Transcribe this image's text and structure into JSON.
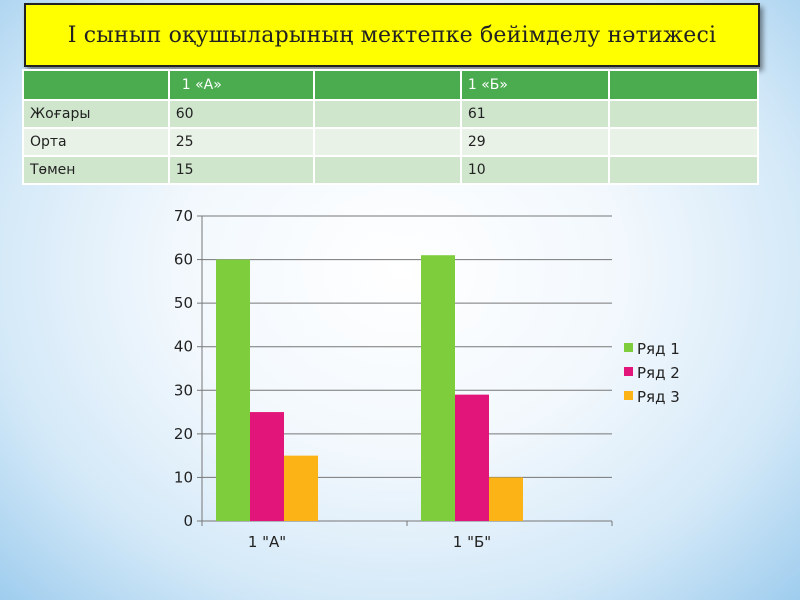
{
  "title": "I  сынып оқушыларының мектепке бейімделу нәтижесі",
  "table": {
    "header": [
      "",
      "1 «А»",
      "",
      "1 «Б»",
      ""
    ],
    "rows": [
      [
        "Жоғары",
        "60",
        "",
        "61",
        ""
      ],
      [
        "Орта",
        "25",
        "",
        "29",
        ""
      ],
      [
        "Төмен",
        "15",
        "",
        "10",
        ""
      ]
    ]
  },
  "chart_data": {
    "type": "bar",
    "categories": [
      "1   \"А\"",
      "1 \"Б\""
    ],
    "series": [
      {
        "name": "Ряд 1",
        "values": [
          60,
          61
        ],
        "color": "#7ecd3c"
      },
      {
        "name": "Ряд 2",
        "values": [
          25,
          29
        ],
        "color": "#e2157a"
      },
      {
        "name": "Ряд 3",
        "values": [
          15,
          10
        ],
        "color": "#fcb315"
      }
    ],
    "ylim": [
      0,
      70
    ],
    "yticks": [
      0,
      10,
      20,
      30,
      40,
      50,
      60,
      70
    ],
    "grid": true,
    "legend": "right"
  }
}
